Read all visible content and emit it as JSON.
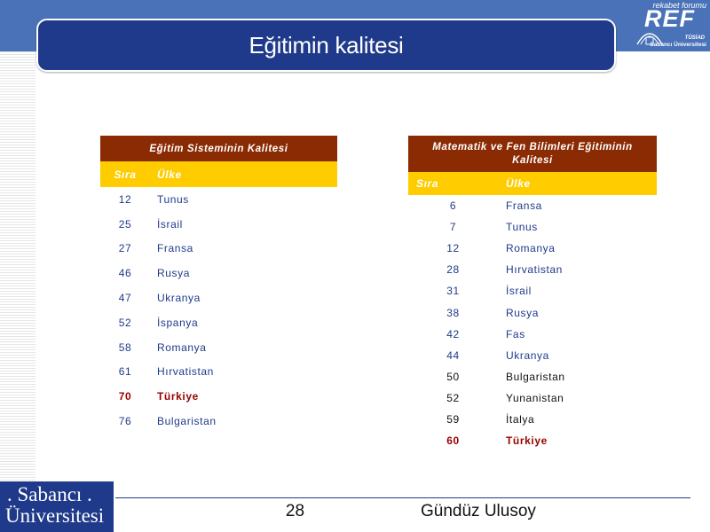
{
  "slide": {
    "title": "Eğitimin kalitesi",
    "page_number": "28",
    "author": "Gündüz Ulusoy"
  },
  "logos": {
    "ref_top": "rekabet forumu",
    "ref_big": "REF",
    "ref_tusiad": "TÜSİAD",
    "ref_su": "Sabancı Üniversitesi",
    "su_line1": ". Sabancı .",
    "su_line2": "Üniversitesi"
  },
  "table_a": {
    "title": "Eğitim Sisteminin Kalitesi",
    "col_rank": "Sıra",
    "col_country": "Ülke",
    "rows": [
      {
        "rank": "12",
        "country": "Tunus"
      },
      {
        "rank": "25",
        "country": "İsrail"
      },
      {
        "rank": "27",
        "country": "Fransa"
      },
      {
        "rank": "46",
        "country": "Rusya"
      },
      {
        "rank": "47",
        "country": "Ukranya"
      },
      {
        "rank": "52",
        "country": "İspanya"
      },
      {
        "rank": "58",
        "country": "Romanya"
      },
      {
        "rank": "61",
        "country": "Hırvatistan"
      },
      {
        "rank": "70",
        "country": "Türkiye"
      },
      {
        "rank": "76",
        "country": "Bulgaristan"
      }
    ]
  },
  "table_b": {
    "title_line1": "Matematik ve Fen Bilimleri Eğitiminin",
    "title_line2": "Kalitesi",
    "col_rank": "Sıra",
    "col_country": "Ülke",
    "rows": [
      {
        "rank": "6",
        "country": "Fransa"
      },
      {
        "rank": "7",
        "country": "Tunus"
      },
      {
        "rank": "12",
        "country": "Romanya"
      },
      {
        "rank": "28",
        "country": "Hırvatistan"
      },
      {
        "rank": "31",
        "country": "İsrail"
      },
      {
        "rank": "38",
        "country": "Rusya"
      },
      {
        "rank": "42",
        "country": "Fas"
      },
      {
        "rank": "44",
        "country": "Ukranya"
      },
      {
        "rank": "50",
        "country": "Bulgaristan"
      },
      {
        "rank": "52",
        "country": "Yunanistan"
      },
      {
        "rank": "59",
        "country": "İtalya"
      },
      {
        "rank": "60",
        "country": "Türkiye"
      }
    ]
  },
  "colors": {
    "header_dark_red": "#8b2b04",
    "header_yellow": "#ffcc00",
    "title_blue": "#1f3a8a",
    "highlight": "#990000"
  }
}
